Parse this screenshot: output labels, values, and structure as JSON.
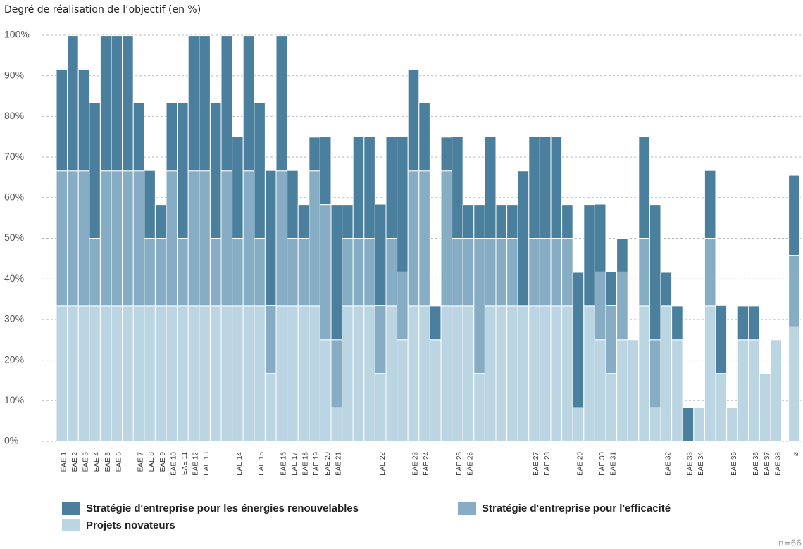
{
  "chart_data": {
    "type": "stacked_bar",
    "title": "Degré de réalisation de l’objectif (en %)",
    "note": "n=66",
    "categories": [
      "EAE 1",
      "EAE 2",
      "EAE 3",
      "EAE 4",
      "EAE 5",
      "EAE 6",
      null,
      "EAE 7",
      "EAE 8",
      "EAE 9",
      "EAE 10",
      "EAE 11",
      "EAE 12",
      "EAE 13",
      null,
      null,
      "EAE 14",
      null,
      "EAE 15",
      null,
      "EAE 16",
      "EAE 17",
      "EAE 18",
      "EAE 19",
      "EAE 20",
      "EAE 21",
      null,
      null,
      null,
      "EAE 22",
      null,
      null,
      "EAE 23",
      "EAE 24",
      null,
      null,
      "EAE 25",
      "EAE 26",
      null,
      null,
      null,
      null,
      null,
      "EAE 27",
      "EAE 28",
      null,
      null,
      "EAE 29",
      null,
      "EAE 30",
      "EAE 31",
      null,
      null,
      null,
      null,
      "EAE 32",
      null,
      "EAE 33",
      "EAE 34",
      null,
      null,
      "EAE 35",
      null,
      "EAE 36",
      "EAE 37",
      "EAE 38",
      "ø"
    ],
    "series": [
      {
        "name": "Stratégie d'entreprise pour les énergies renouvelables",
        "color": "#4a809d",
        "values": [
          25,
          33.3,
          25,
          33.3,
          33.3,
          33.3,
          33.3,
          16.7,
          16.7,
          8.3,
          16.7,
          33.3,
          33.3,
          33.3,
          33.3,
          33.3,
          25,
          33.3,
          33.3,
          33.3,
          33.3,
          16.7,
          8.3,
          8.3,
          16.7,
          33.3,
          8.3,
          25,
          25,
          25,
          25,
          33.3,
          25,
          16.7,
          8.3,
          8.3,
          25,
          8.3,
          8.3,
          25,
          8.3,
          8.3,
          33.3,
          25,
          25,
          25,
          8.3,
          33.3,
          25,
          16.7,
          8.3,
          8.3,
          0,
          25,
          33.3,
          8.3,
          8.3,
          8.3,
          0,
          16.7,
          16.7,
          0,
          8.3,
          8.3,
          0,
          0,
          19.8
        ]
      },
      {
        "name": "Stratégie d'entreprise pour l'efficacité",
        "color": "#86adc3",
        "values": [
          33.3,
          33.3,
          33.3,
          16.7,
          33.3,
          33.3,
          33.3,
          33.3,
          16.7,
          16.7,
          33.3,
          16.7,
          33.3,
          33.3,
          16.7,
          33.3,
          16.7,
          33.3,
          16.7,
          16.7,
          33.3,
          16.7,
          16.7,
          33.3,
          33.3,
          16.7,
          16.7,
          16.7,
          16.7,
          16.7,
          16.7,
          16.7,
          33.3,
          33.3,
          0,
          33.3,
          16.7,
          16.7,
          33.3,
          16.7,
          16.7,
          16.7,
          0,
          16.7,
          16.7,
          16.7,
          16.7,
          0,
          0,
          16.7,
          16.7,
          16.7,
          0,
          16.7,
          16.7,
          0,
          0,
          0,
          0,
          16.7,
          0,
          0,
          0,
          0,
          0,
          0,
          17.5
        ]
      },
      {
        "name": "Projets novateurs",
        "color": "#bcd5e2",
        "values": [
          33.3,
          33.3,
          33.3,
          33.3,
          33.3,
          33.3,
          33.3,
          33.3,
          33.3,
          33.3,
          33.3,
          33.3,
          33.3,
          33.3,
          33.3,
          33.3,
          33.3,
          33.3,
          33.3,
          16.7,
          33.3,
          33.3,
          33.3,
          33.3,
          25,
          8.3,
          33.3,
          33.3,
          33.3,
          16.7,
          33.3,
          25,
          33.3,
          33.3,
          25,
          33.3,
          33.3,
          33.3,
          16.7,
          33.3,
          33.3,
          33.3,
          33.3,
          33.3,
          33.3,
          33.3,
          33.3,
          8.3,
          33.3,
          25,
          16.7,
          25,
          25,
          33.3,
          8.3,
          33.3,
          25,
          0,
          8.3,
          33.3,
          16.7,
          8.3,
          25,
          25,
          16.7,
          25,
          28.2
        ]
      }
    ],
    "ylim": [
      0,
      100
    ],
    "yticks": [
      {
        "value": 0,
        "label": "0%"
      },
      {
        "value": 10,
        "label": "10%"
      },
      {
        "value": 20,
        "label": "20%"
      },
      {
        "value": 30,
        "label": "30%"
      },
      {
        "value": 40,
        "label": "40%"
      },
      {
        "value": 50,
        "label": "50%"
      },
      {
        "value": 60,
        "label": "60%"
      },
      {
        "value": 70,
        "label": "70%"
      },
      {
        "value": 80,
        "label": "80%"
      },
      {
        "value": 90,
        "label": "90%"
      },
      {
        "value": 100,
        "label": "100%"
      }
    ],
    "grid": true,
    "legend": "bottom"
  }
}
